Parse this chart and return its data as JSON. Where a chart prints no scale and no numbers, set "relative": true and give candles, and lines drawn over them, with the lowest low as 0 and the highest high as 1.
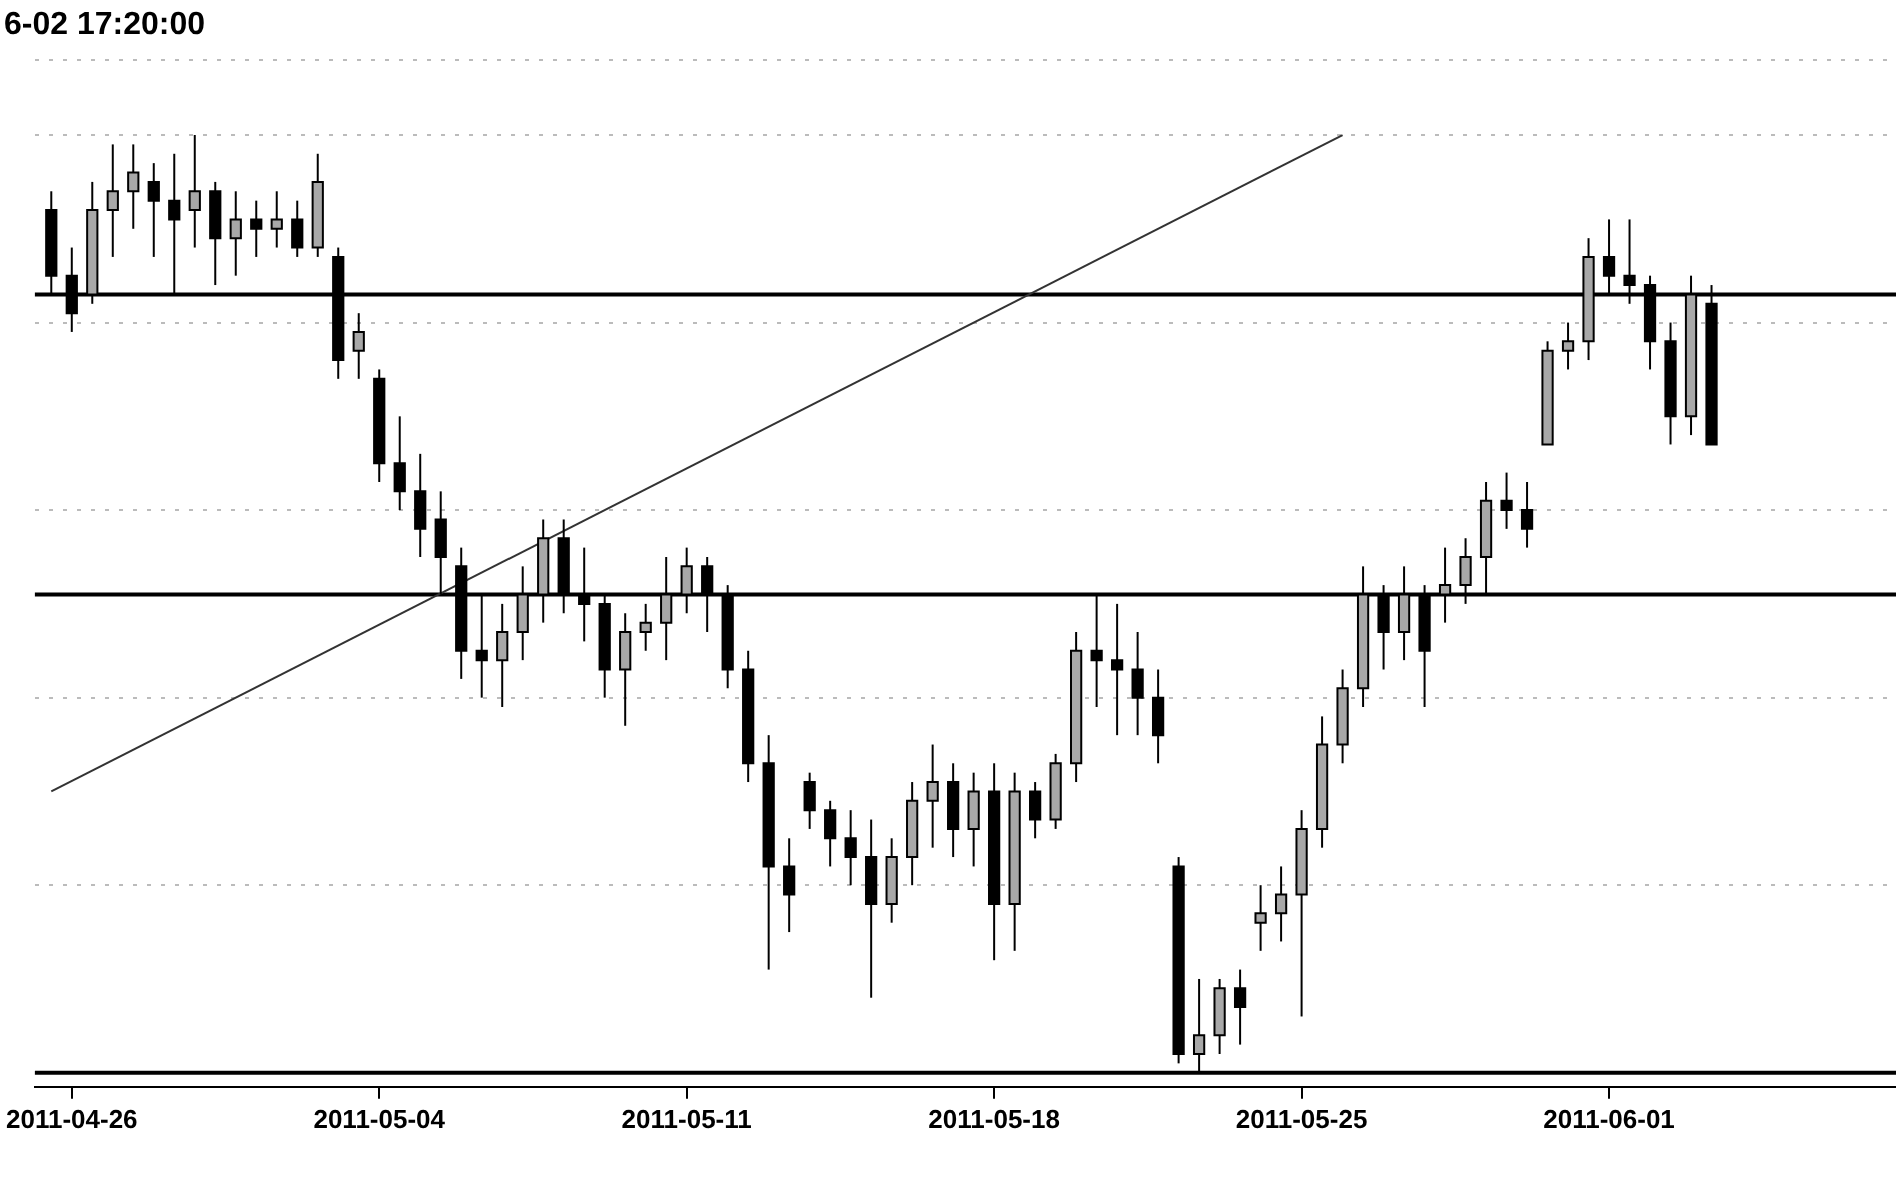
{
  "chart_data": {
    "type": "candlestick",
    "title": "6-02 17:20:00",
    "relative": true,
    "grid": "y",
    "colors": [
      "#000000",
      "#000000",
      "#a8a8a8",
      "#a8a8a8",
      "#a8a8a8",
      "#000000",
      "#000000",
      "#a8a8a8",
      "#000000",
      "#a8a8a8",
      "#000000",
      "#a8a8a8",
      "#000000",
      "#a8a8a8",
      "#000000",
      "#a8a8a8",
      "#000000",
      "#000000",
      "#000000",
      "#000000",
      "#000000",
      "#000000",
      "#a8a8a8",
      "#a8a8a8",
      "#a8a8a8",
      "#000000",
      "#000000",
      "#000000",
      "#a8a8a8",
      "#a8a8a8",
      "#a8a8a8",
      "#a8a8a8",
      "#000000",
      "#000000",
      "#000000",
      "#000000",
      "#000000",
      "#000000",
      "#000000",
      "#000000",
      "#000000",
      "#a8a8a8",
      "#a8a8a8",
      "#a8a8a8",
      "#000000",
      "#a8a8a8",
      "#000000",
      "#a8a8a8",
      "#000000",
      "#a8a8a8",
      "#a8a8a8",
      "#000000",
      "#000000",
      "#000000",
      "#000000",
      "#000000",
      "#a8a8a8",
      "#a8a8a8",
      "#000000",
      "#a8a8a8",
      "#a8a8a8",
      "#a8a8a8",
      "#a8a8a8",
      "#a8a8a8",
      "#a8a8a8",
      "#000000",
      "#a8a8a8",
      "#000000",
      "#a8a8a8",
      "#a8a8a8",
      "#a8a8a8",
      "#000000",
      "#000000",
      "#a8a8a8",
      "#a8a8a8",
      "#a8a8a8",
      "#000000",
      "#000000",
      "#000000",
      "#000000",
      "#a8a8a8",
      "#000000"
    ],
    "categories": [
      null,
      "2011-04-26",
      null,
      null,
      null,
      null,
      null,
      null,
      null,
      null,
      null,
      null,
      null,
      null,
      null,
      null,
      "2011-05-04",
      null,
      null,
      null,
      null,
      null,
      null,
      null,
      null,
      null,
      null,
      null,
      null,
      null,
      null,
      "2011-05-11",
      null,
      null,
      null,
      null,
      null,
      null,
      null,
      null,
      null,
      null,
      null,
      null,
      null,
      null,
      "2011-05-18",
      null,
      null,
      null,
      null,
      null,
      null,
      null,
      null,
      null,
      null,
      null,
      null,
      null,
      null,
      "2011-05-25",
      null,
      null,
      null,
      null,
      null,
      null,
      null,
      null,
      null,
      null,
      null,
      null,
      null,
      null,
      "2011-06-01",
      null,
      null,
      null,
      null,
      null
    ],
    "ohlc": [
      [
        0.92,
        0.94,
        0.83,
        0.85
      ],
      [
        0.85,
        0.88,
        0.79,
        0.81
      ],
      [
        0.83,
        0.95,
        0.82,
        0.92
      ],
      [
        0.92,
        0.99,
        0.87,
        0.94
      ],
      [
        0.94,
        0.99,
        0.9,
        0.96
      ],
      [
        0.95,
        0.97,
        0.87,
        0.93
      ],
      [
        0.93,
        0.98,
        0.83,
        0.91
      ],
      [
        0.92,
        1,
        0.88,
        0.94
      ],
      [
        0.94,
        0.95,
        0.84,
        0.89
      ],
      [
        0.89,
        0.94,
        0.85,
        0.91
      ],
      [
        0.91,
        0.93,
        0.87,
        0.9
      ],
      [
        0.9,
        0.94,
        0.88,
        0.91
      ],
      [
        0.91,
        0.93,
        0.87,
        0.88
      ],
      [
        0.88,
        0.98,
        0.87,
        0.95
      ],
      [
        0.87,
        0.88,
        0.74,
        0.76
      ],
      [
        0.77,
        0.81,
        0.74,
        0.79
      ],
      [
        0.74,
        0.75,
        0.63,
        0.65
      ],
      [
        0.65,
        0.7,
        0.6,
        0.62
      ],
      [
        0.62,
        0.66,
        0.55,
        0.58
      ],
      [
        0.59,
        0.62,
        0.51,
        0.55
      ],
      [
        0.54,
        0.56,
        0.42,
        0.45
      ],
      [
        0.45,
        0.51,
        0.4,
        0.44
      ],
      [
        0.44,
        0.5,
        0.39,
        0.47
      ],
      [
        0.47,
        0.54,
        0.44,
        0.51
      ],
      [
        0.51,
        0.59,
        0.48,
        0.57
      ],
      [
        0.57,
        0.59,
        0.49,
        0.51
      ],
      [
        0.51,
        0.56,
        0.46,
        0.5
      ],
      [
        0.5,
        0.51,
        0.4,
        0.43
      ],
      [
        0.43,
        0.49,
        0.37,
        0.47
      ],
      [
        0.47,
        0.5,
        0.45,
        0.48
      ],
      [
        0.48,
        0.55,
        0.44,
        0.51
      ],
      [
        0.51,
        0.56,
        0.49,
        0.54
      ],
      [
        0.54,
        0.55,
        0.47,
        0.51
      ],
      [
        0.51,
        0.52,
        0.41,
        0.43
      ],
      [
        0.43,
        0.45,
        0.31,
        0.33
      ],
      [
        0.33,
        0.36,
        0.11,
        0.22
      ],
      [
        0.22,
        0.25,
        0.15,
        0.19
      ],
      [
        0.31,
        0.32,
        0.26,
        0.28
      ],
      [
        0.28,
        0.29,
        0.22,
        0.25
      ],
      [
        0.25,
        0.28,
        0.2,
        0.23
      ],
      [
        0.23,
        0.27,
        0.08,
        0.18
      ],
      [
        0.18,
        0.25,
        0.16,
        0.23
      ],
      [
        0.23,
        0.31,
        0.2,
        0.29
      ],
      [
        0.29,
        0.35,
        0.24,
        0.31
      ],
      [
        0.31,
        0.33,
        0.23,
        0.26
      ],
      [
        0.26,
        0.32,
        0.22,
        0.3
      ],
      [
        0.3,
        0.33,
        0.12,
        0.18
      ],
      [
        0.18,
        0.32,
        0.13,
        0.3
      ],
      [
        0.3,
        0.31,
        0.25,
        0.27
      ],
      [
        0.27,
        0.34,
        0.26,
        0.33
      ],
      [
        0.33,
        0.47,
        0.31,
        0.45
      ],
      [
        0.45,
        0.51,
        0.39,
        0.44
      ],
      [
        0.44,
        0.5,
        0.36,
        0.43
      ],
      [
        0.43,
        0.47,
        0.36,
        0.4
      ],
      [
        0.4,
        0.43,
        0.33,
        0.36
      ],
      [
        0.22,
        0.23,
        0.01,
        0.02
      ],
      [
        0.02,
        0.1,
        0,
        0.04
      ],
      [
        0.04,
        0.1,
        0.02,
        0.09
      ],
      [
        0.09,
        0.11,
        0.03,
        0.07
      ],
      [
        0.16,
        0.2,
        0.13,
        0.17
      ],
      [
        0.17,
        0.22,
        0.14,
        0.19
      ],
      [
        0.19,
        0.28,
        0.06,
        0.26
      ],
      [
        0.26,
        0.38,
        0.24,
        0.35
      ],
      [
        0.35,
        0.43,
        0.33,
        0.41
      ],
      [
        0.41,
        0.54,
        0.39,
        0.51
      ],
      [
        0.51,
        0.52,
        0.43,
        0.47
      ],
      [
        0.47,
        0.54,
        0.44,
        0.51
      ],
      [
        0.51,
        0.52,
        0.39,
        0.45
      ],
      [
        0.51,
        0.56,
        0.48,
        0.52
      ],
      [
        0.52,
        0.57,
        0.5,
        0.55
      ],
      [
        0.55,
        0.63,
        0.51,
        0.61
      ],
      [
        0.61,
        0.64,
        0.58,
        0.6
      ],
      [
        0.6,
        0.63,
        0.56,
        0.58
      ],
      [
        0.67,
        0.78,
        0.67,
        0.77
      ],
      [
        0.77,
        0.8,
        0.75,
        0.78
      ],
      [
        0.78,
        0.89,
        0.76,
        0.87
      ],
      [
        0.87,
        0.91,
        0.83,
        0.85
      ],
      [
        0.85,
        0.91,
        0.82,
        0.84
      ],
      [
        0.84,
        0.85,
        0.75,
        0.78
      ],
      [
        0.78,
        0.8,
        0.67,
        0.7
      ],
      [
        0.7,
        0.85,
        0.68,
        0.83
      ],
      [
        0.82,
        0.84,
        0.67,
        0.67
      ]
    ],
    "series": [
      {
        "type": "line",
        "color": "#333333",
        "values": [
          0.3,
          null,
          null,
          null,
          null,
          null,
          null,
          null,
          null,
          null,
          null,
          null,
          null,
          null,
          null,
          null,
          null,
          null,
          null,
          null,
          null,
          null,
          null,
          null,
          null,
          null,
          null,
          null,
          null,
          null,
          null,
          null,
          null,
          null,
          null,
          null,
          null,
          null,
          null,
          null,
          null,
          null,
          null,
          null,
          null,
          null,
          null,
          null,
          null,
          null,
          null,
          null,
          null,
          null,
          null,
          null,
          null,
          null,
          null,
          null,
          null,
          null,
          null,
          1.0,
          null,
          null,
          null,
          null,
          null,
          null,
          null,
          null,
          null,
          null,
          null,
          null,
          null,
          null,
          null,
          null,
          null,
          null
        ]
      }
    ],
    "ref_lines": [
      {
        "axis": "y",
        "value": 0.51,
        "color": "#000000"
      },
      {
        "axis": "y",
        "value": 0,
        "color": "#000000"
      },
      {
        "axis": "y",
        "value": 0.83,
        "color": "#000000"
      }
    ]
  }
}
